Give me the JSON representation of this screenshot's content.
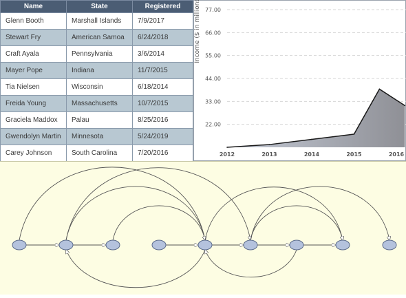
{
  "table": {
    "columns": [
      "Name",
      "State",
      "Registered"
    ],
    "rows": [
      [
        "Glenn Booth",
        "Marshall Islands",
        "7/9/2017"
      ],
      [
        "Stewart Fry",
        "American Samoa",
        "6/24/2018"
      ],
      [
        "Craft Ayala",
        "Pennsylvania",
        "3/6/2014"
      ],
      [
        "Mayer Pope",
        "Indiana",
        "11/7/2015"
      ],
      [
        "Tia Nielsen",
        "Wisconsin",
        "6/18/2014"
      ],
      [
        "Freida Young",
        "Massachusetts",
        "10/7/2015"
      ],
      [
        "Graciela Maddox",
        "Palau",
        "8/25/2016"
      ],
      [
        "Gwendolyn Martin",
        "Minnesota",
        "5/24/2019"
      ],
      [
        "Carey Johnson",
        "South Carolina",
        "7/20/2016"
      ]
    ]
  },
  "chart_data": {
    "type": "area",
    "title": "",
    "xlabel": "",
    "ylabel": "Income ($ in millions)",
    "x": [
      2012,
      2013,
      2014,
      2015,
      2016
    ],
    "x_tick_labels": [
      "2012",
      "2013",
      "2014",
      "2015",
      "2016"
    ],
    "y_ticks": [
      22.0,
      33.0,
      44.0,
      55.0,
      66.0,
      77.0
    ],
    "y_tick_labels": [
      "22.00",
      "33.00",
      "44.00",
      "55.00",
      "66.00",
      "77.00"
    ],
    "ylim": [
      11.0,
      77.0
    ],
    "grid": true,
    "series": [
      {
        "values": [
          [
            2012,
            11.0
          ],
          [
            2013,
            12.3
          ],
          [
            2014,
            14.8
          ],
          [
            2015,
            17.3
          ],
          [
            2015.6,
            38.9
          ],
          [
            2016.2,
            31.0
          ]
        ]
      }
    ],
    "colors": {
      "line": "#1a1a1a",
      "fill_top": "#8f9096",
      "fill_bottom": "#c4cad6",
      "grid": "#d6d6d6"
    }
  },
  "diagram": {
    "colors": {
      "node_fill": "#b4c2dd",
      "node_stroke": "#5a6a8a",
      "edge": "#555555",
      "background": "#fdfde3"
    },
    "nodes": [
      "n0",
      "n1",
      "n2",
      "n3",
      "n4",
      "n5",
      "n6",
      "n7",
      "n8"
    ],
    "edges": [
      [
        "n0",
        "n1"
      ],
      [
        "n1",
        "n2"
      ],
      [
        "n3",
        "n4"
      ],
      [
        "n4",
        "n5"
      ],
      [
        "n5",
        "n6"
      ],
      [
        "n6",
        "n7"
      ],
      [
        "n0",
        "n4"
      ],
      [
        "n1",
        "n5"
      ],
      [
        "n1",
        "n4"
      ],
      [
        "n2",
        "n4"
      ],
      [
        "n4",
        "n7"
      ],
      [
        "n5",
        "n8"
      ],
      [
        "n5",
        "n7"
      ],
      [
        "n4",
        "n1"
      ],
      [
        "n6",
        "n4"
      ]
    ]
  }
}
